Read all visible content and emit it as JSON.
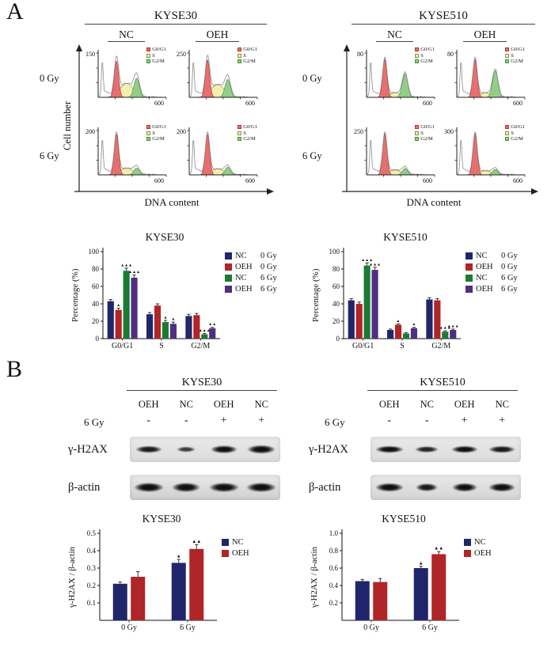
{
  "figure": {
    "panel_a_label": "A",
    "panel_b_label": "B"
  },
  "flow_colors": {
    "g01_fill": "#e76f6f",
    "g01_edge": "#b23535",
    "s_fill": "#f3efae",
    "s_edge": "#8f8f3f",
    "g2m_fill": "#93cd87",
    "g2m_edge": "#3d9140",
    "outline": "#8a8a8a"
  },
  "panelA": {
    "groups": [
      {
        "title": "KYSE30",
        "columns": [
          "NC",
          "OEH"
        ],
        "rows": [
          "0 Gy",
          "6 Gy"
        ],
        "ylabel": "Cell number",
        "xlabel": "DNA content",
        "legend": [
          "G0/G1",
          "S",
          "G2/M"
        ],
        "plots": [
          {
            "ymax": "150",
            "xmax": "600",
            "g01": 0.85,
            "s": 0.38,
            "g2m": 0.45
          },
          {
            "ymax": "250",
            "xmax": "600",
            "g01": 0.88,
            "s": 0.35,
            "g2m": 0.42
          },
          {
            "ymax": "200",
            "xmax": "600",
            "g01": 0.96,
            "s": 0.18,
            "g2m": 0.16
          },
          {
            "ymax": "200",
            "xmax": "600",
            "g01": 0.95,
            "s": 0.16,
            "g2m": 0.18
          }
        ]
      },
      {
        "title": "KYSE510",
        "columns": [
          "NC",
          "OEH"
        ],
        "rows": [
          "0 Gy",
          "6 Gy"
        ],
        "xlabel": "DNA content",
        "legend": [
          "G0/G1",
          "S",
          "G2/M"
        ],
        "plots": [
          {
            "ymax": "80",
            "xmax": "600",
            "g01": 0.9,
            "s": 0.12,
            "g2m": 0.55
          },
          {
            "ymax": "80",
            "xmax": "600",
            "g01": 0.9,
            "s": 0.12,
            "g2m": 0.62
          },
          {
            "ymax": "250",
            "xmax": "600",
            "g01": 0.97,
            "s": 0.13,
            "g2m": 0.15
          },
          {
            "ymax": "300",
            "xmax": "600",
            "g01": 0.97,
            "s": 0.11,
            "g2m": 0.13
          }
        ]
      }
    ]
  },
  "chart_data": [
    {
      "type": "bar",
      "title": "KYSE30",
      "ylabel": "Percentage (%)",
      "ylim": [
        0,
        100
      ],
      "yticks": [
        0,
        20,
        40,
        60,
        80,
        100
      ],
      "ytick_labels": [
        "0",
        "20",
        "40",
        "60",
        "80",
        "100"
      ],
      "categories": [
        "G0/G1",
        "S",
        "G2/M"
      ],
      "legend_position": "right",
      "series": [
        {
          "name": "NC",
          "dose": "0 Gy",
          "color": "#20266b",
          "values": [
            43,
            28,
            26
          ],
          "errors": [
            2,
            2,
            2
          ],
          "annotations": [
            "",
            "",
            ""
          ]
        },
        {
          "name": "OEH",
          "dose": "0 Gy",
          "color": "#b02527",
          "values": [
            33,
            38,
            27
          ],
          "errors": [
            2,
            2,
            2
          ],
          "annotations": [
            "▲",
            "",
            ""
          ]
        },
        {
          "name": "NC",
          "dose": "6 Gy",
          "color": "#1c7a33",
          "values": [
            78,
            19,
            5
          ],
          "errors": [
            3,
            2,
            1
          ],
          "annotations": [
            "▲▲▲",
            "▲",
            "▲▲▲"
          ]
        },
        {
          "name": "OEH",
          "dose": "6 Gy",
          "color": "#522d80",
          "values": [
            70,
            17,
            12
          ],
          "errors": [
            3,
            2,
            1
          ],
          "annotations": [
            "▲▲▲",
            "▲",
            "▲▲"
          ]
        }
      ]
    },
    {
      "type": "bar",
      "title": "KYSE510",
      "ylabel": "Percentage (%)",
      "ylim": [
        0,
        100
      ],
      "yticks": [
        0,
        20,
        40,
        60,
        80,
        100
      ],
      "ytick_labels": [
        "0",
        "20",
        "40",
        "60",
        "80",
        "100"
      ],
      "categories": [
        "G0/G1",
        "S",
        "G2/M"
      ],
      "legend_position": "right",
      "series": [
        {
          "name": "NC",
          "dose": "0 Gy",
          "color": "#20266b",
          "values": [
            44,
            10,
            45
          ],
          "errors": [
            2,
            1,
            2
          ],
          "annotations": [
            "",
            "",
            ""
          ]
        },
        {
          "name": "OEH",
          "dose": "0 Gy",
          "color": "#b02527",
          "values": [
            40,
            16,
            44
          ],
          "errors": [
            2,
            1,
            2
          ],
          "annotations": [
            "",
            "▲",
            ""
          ]
        },
        {
          "name": "NC",
          "dose": "6 Gy",
          "color": "#1c7a33",
          "values": [
            84,
            6,
            8
          ],
          "errors": [
            3,
            1,
            1
          ],
          "annotations": [
            "▲▲▲",
            "",
            "▲▲▲"
          ]
        },
        {
          "name": "OEH",
          "dose": "6 Gy",
          "color": "#522d80",
          "values": [
            79,
            12,
            10
          ],
          "errors": [
            3,
            1,
            1
          ],
          "annotations": [
            "▲▲▲",
            "▲",
            "▲▲▲"
          ]
        }
      ]
    },
    {
      "type": "bar",
      "title": "KYSE30",
      "ylabel": "γ-H2AX / β-actin",
      "ylim": [
        0,
        0.5
      ],
      "yticks": [
        0.1,
        0.2,
        0.3,
        0.4,
        0.5
      ],
      "ytick_labels": [
        "0.1",
        "0.2",
        "0.3",
        "0.4",
        "0.5"
      ],
      "categories": [
        "0 Gy",
        "6 Gy"
      ],
      "legend_position": "right",
      "series": [
        {
          "name": "NC",
          "dose": "",
          "color": "#20266b",
          "values": [
            0.21,
            0.33
          ],
          "errors": [
            0.01,
            0.02
          ],
          "annotations": [
            "",
            "▲"
          ]
        },
        {
          "name": "OEH",
          "dose": "",
          "color": "#b02527",
          "values": [
            0.25,
            0.41
          ],
          "errors": [
            0.03,
            0.025
          ],
          "annotations": [
            "",
            "▲▲"
          ]
        }
      ]
    },
    {
      "type": "bar",
      "title": "KYSE510",
      "ylabel": "γ-H2AX / β-actin",
      "ylim": [
        0,
        1.0
      ],
      "yticks": [
        0.2,
        0.4,
        0.6,
        0.8,
        1.0
      ],
      "ytick_labels": [
        "0.2",
        "0.4",
        "0.6",
        "0.8",
        "1.0"
      ],
      "categories": [
        "0 Gy",
        "6 Gy"
      ],
      "legend_position": "right",
      "series": [
        {
          "name": "NC",
          "dose": "",
          "color": "#20266b",
          "values": [
            0.45,
            0.6
          ],
          "errors": [
            0.02,
            0.02
          ],
          "annotations": [
            "",
            "▲"
          ]
        },
        {
          "name": "OEH",
          "dose": "",
          "color": "#b02527",
          "values": [
            0.44,
            0.76
          ],
          "errors": [
            0.04,
            0.03
          ],
          "annotations": [
            "",
            "▲▲"
          ]
        }
      ]
    }
  ],
  "panelB": {
    "groups": [
      {
        "title": "KYSE30",
        "lanes": [
          "OEH",
          "NC",
          "OEH",
          "NC"
        ],
        "dose_label": "6 Gy",
        "dose_values": [
          "-",
          "-",
          "+",
          "+"
        ],
        "blots": [
          {
            "protein": "γ-H2AX",
            "bg": "#dcdcdc",
            "bands": [
              [
                34,
                9,
                0.95
              ],
              [
                24,
                7,
                0.8
              ],
              [
                34,
                10,
                1
              ],
              [
                36,
                11,
                1
              ]
            ]
          },
          {
            "protein": "β-actin",
            "bg": "#cfcfcf",
            "bands": [
              [
                38,
                12,
                1
              ],
              [
                36,
                12,
                1
              ],
              [
                38,
                12,
                1
              ],
              [
                38,
                12,
                1
              ]
            ]
          }
        ]
      },
      {
        "title": "KYSE510",
        "lanes": [
          "OEH",
          "NC",
          "OEH",
          "NC"
        ],
        "dose_label": "6 Gy",
        "dose_values": [
          "-",
          "-",
          "+",
          "+"
        ],
        "blots": [
          {
            "protein": "γ-H2AX",
            "bg": "#dcdcdc",
            "bands": [
              [
                36,
                9,
                1
              ],
              [
                30,
                8,
                0.9
              ],
              [
                34,
                9,
                1
              ],
              [
                34,
                9,
                0.95
              ]
            ]
          },
          {
            "protein": "β-actin",
            "bg": "#d4d4d4",
            "bands": [
              [
                36,
                11,
                1
              ],
              [
                28,
                10,
                0.95
              ],
              [
                32,
                11,
                1
              ],
              [
                34,
                11,
                1
              ]
            ]
          }
        ]
      }
    ]
  }
}
